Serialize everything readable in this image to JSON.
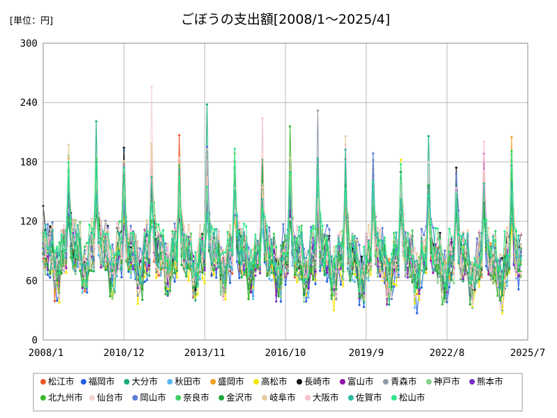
{
  "chart_data": {
    "type": "line",
    "title": "ごぼうの支出額[2008/1～2025/4]",
    "unit_label": "[単位：円]",
    "xlabel": "",
    "ylabel": "",
    "x_ticks": [
      "2008/1",
      "2010/12",
      "2013/11",
      "2016/10",
      "2019/9",
      "2022/8",
      "2025/7"
    ],
    "y_ticks": [
      0,
      60,
      120,
      180,
      240,
      300
    ],
    "ylim": [
      0,
      300
    ],
    "xlim": [
      "2008/1",
      "2025/7"
    ],
    "grid": true,
    "legend_position": "bottom",
    "series": [
      {
        "name": "松江市",
        "color": "#f05a22"
      },
      {
        "name": "福岡市",
        "color": "#1f5fe0"
      },
      {
        "name": "大分市",
        "color": "#1aae7a"
      },
      {
        "name": "秋田市",
        "color": "#5bb8f0"
      },
      {
        "name": "盛岡市",
        "color": "#f0a020"
      },
      {
        "name": "高松市",
        "color": "#f5e600"
      },
      {
        "name": "長崎市",
        "color": "#111111"
      },
      {
        "name": "富山市",
        "color": "#9010a8"
      },
      {
        "name": "青森市",
        "color": "#8f9aa5"
      },
      {
        "name": "神戸市",
        "color": "#85d28c"
      },
      {
        "name": "熊本市",
        "color": "#7a2ec8"
      },
      {
        "name": "北九州市",
        "color": "#3cb82e"
      },
      {
        "name": "仙台市",
        "color": "#f7d2d2"
      },
      {
        "name": "岡山市",
        "color": "#5a78d8"
      },
      {
        "name": "奈良市",
        "color": "#3ed060"
      },
      {
        "name": "金沢市",
        "color": "#22a83a"
      },
      {
        "name": "岐阜市",
        "color": "#e6cc9c"
      },
      {
        "name": "大阪市",
        "color": "#f8c0cc"
      },
      {
        "name": "佐賀市",
        "color": "#2abaa2"
      },
      {
        "name": "松山市",
        "color": "#2ee88a"
      }
    ],
    "notable_peaks": [
      {
        "x": "2011/12",
        "y": 256,
        "series": "仙台市"
      },
      {
        "x": "2013/12",
        "y": 238,
        "series": "大分市"
      },
      {
        "x": "2017/12",
        "y": 232,
        "series": "青森市"
      },
      {
        "x": "2015/12",
        "y": 224,
        "series": "大阪市"
      },
      {
        "x": "2009/12",
        "y": 221,
        "series": "大分市"
      },
      {
        "x": "2016/12",
        "y": 216,
        "series": "北九州市"
      },
      {
        "x": "2021/12",
        "y": 206,
        "series": "大分市"
      },
      {
        "x": "2024/12",
        "y": 205,
        "series": "盛岡市"
      },
      {
        "x": "2012/12",
        "y": 207,
        "series": "松江市"
      }
    ]
  }
}
